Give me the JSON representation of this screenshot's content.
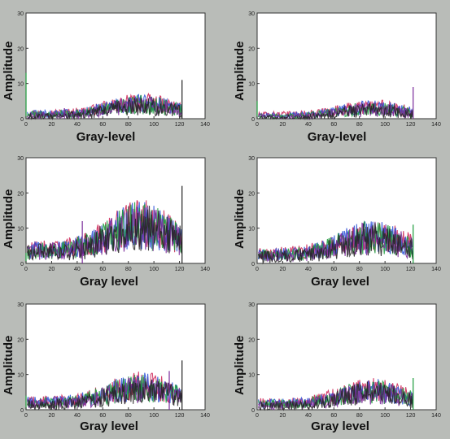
{
  "colors": {
    "background": "#b9bcb8",
    "axes_face": "#ffffff",
    "series": [
      "#cc2255",
      "#2a4fd6",
      "#1a9a3a",
      "#7a2a9a",
      "#222222"
    ]
  },
  "chart_data": [
    {
      "type": "area",
      "xlabel": "Gray-level",
      "ylabel": "Amplitude",
      "xlim": [
        0,
        140
      ],
      "ylim": [
        0,
        30
      ],
      "xticks": [
        0,
        20,
        40,
        60,
        80,
        100,
        120,
        140
      ],
      "yticks": [
        0,
        10,
        20,
        30
      ],
      "grid": false,
      "level": 4,
      "spikes": [
        [
          0,
          13
        ],
        [
          30,
          3
        ],
        [
          122,
          11
        ]
      ]
    },
    {
      "type": "area",
      "xlabel": "Gray-level",
      "ylabel": "Amplitude",
      "xlim": [
        0,
        140
      ],
      "ylim": [
        0,
        30
      ],
      "xticks": [
        0,
        20,
        40,
        60,
        80,
        100,
        120,
        140
      ],
      "yticks": [
        0,
        10,
        20,
        30
      ],
      "grid": false,
      "level": 3,
      "spikes": [
        [
          0,
          5
        ],
        [
          122,
          9
        ]
      ]
    },
    {
      "type": "area",
      "xlabel": "Gray level",
      "ylabel": "Amplitude",
      "xlim": [
        0,
        140
      ],
      "ylim": [
        0,
        30
      ],
      "xticks": [
        0,
        20,
        40,
        60,
        80,
        100,
        120,
        140
      ],
      "yticks": [
        0,
        10,
        20,
        30
      ],
      "grid": false,
      "level": 10,
      "spikes": [
        [
          0,
          3
        ],
        [
          44,
          12
        ],
        [
          122,
          22
        ]
      ]
    },
    {
      "type": "area",
      "xlabel": "Gray level",
      "ylabel": "Amplitude",
      "xlim": [
        0,
        140
      ],
      "ylim": [
        0,
        30
      ],
      "xticks": [
        0,
        20,
        40,
        60,
        80,
        100,
        120,
        140
      ],
      "yticks": [
        0,
        10,
        20,
        30
      ],
      "grid": false,
      "level": 7,
      "spikes": [
        [
          122,
          11
        ]
      ]
    },
    {
      "type": "area",
      "xlabel": "Gray level",
      "ylabel": "Amplitude",
      "xlim": [
        0,
        140
      ],
      "ylim": [
        0,
        30
      ],
      "xticks": [
        0,
        20,
        40,
        60,
        80,
        100,
        120,
        140
      ],
      "yticks": [
        0,
        10,
        20,
        30
      ],
      "grid": false,
      "level": 6,
      "spikes": [
        [
          0,
          4
        ],
        [
          112,
          11
        ],
        [
          122,
          14
        ]
      ]
    },
    {
      "type": "area",
      "xlabel": "Gray level",
      "ylabel": "Amplitude",
      "xlim": [
        0,
        140
      ],
      "ylim": [
        0,
        30
      ],
      "xticks": [
        0,
        20,
        40,
        60,
        80,
        100,
        120,
        140
      ],
      "yticks": [
        0,
        10,
        20,
        30
      ],
      "grid": false,
      "level": 5,
      "spikes": [
        [
          122,
          9
        ]
      ]
    }
  ]
}
